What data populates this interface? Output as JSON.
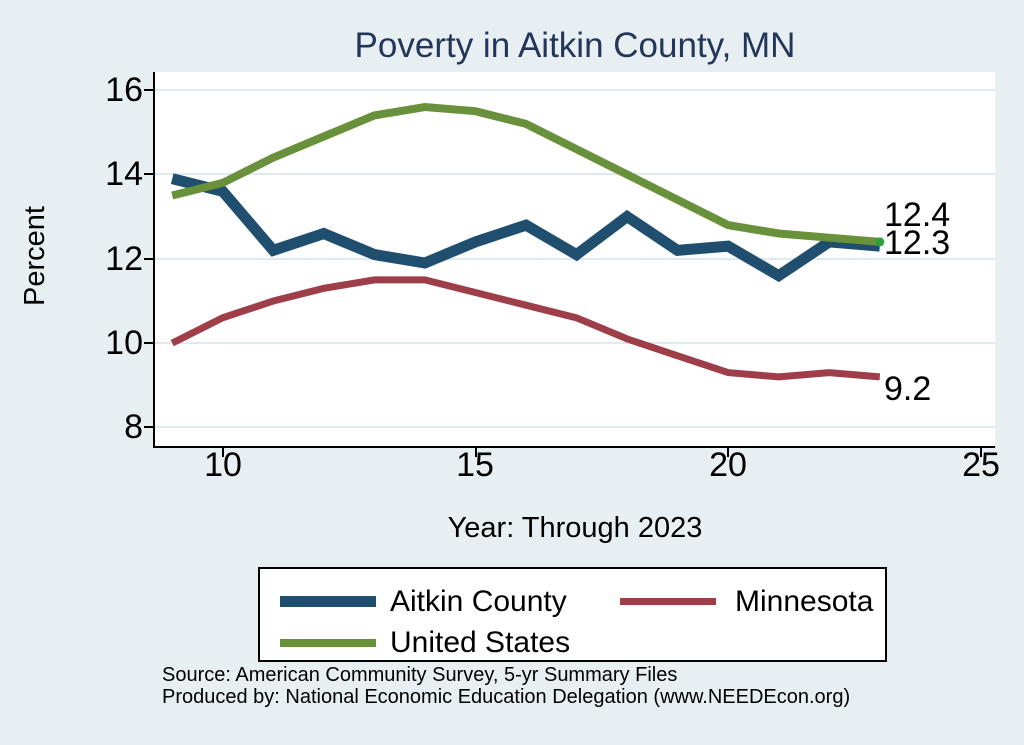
{
  "title": "Poverty in Aitkin County, MN",
  "x_axis": {
    "label": "Year: Through 2023",
    "ticks": [
      10,
      15,
      20,
      25
    ]
  },
  "y_axis": {
    "label": "Percent",
    "ticks": [
      16,
      14,
      12,
      10,
      8
    ]
  },
  "chart_data": {
    "type": "line",
    "title": "Poverty in Aitkin County, MN",
    "xlabel": "Year: Through 2023",
    "ylabel": "Percent",
    "grid": "horizontal",
    "legend_position": "bottom",
    "x": [
      9,
      10,
      11,
      12,
      13,
      14,
      15,
      16,
      17,
      18,
      19,
      20,
      21,
      22,
      23
    ],
    "xlim": [
      8.66,
      25.28
    ],
    "ylim": [
      7.56,
      16.43
    ],
    "marker_color": "#2f9e3c",
    "series": [
      {
        "name": "Aitkin County",
        "color": "#1f4e6f",
        "stroke_width": 11,
        "values": [
          13.9,
          13.6,
          12.2,
          12.6,
          12.1,
          11.9,
          12.4,
          12.8,
          12.1,
          13.0,
          12.2,
          12.3,
          11.6,
          12.4,
          12.3
        ],
        "end_label": "12.3",
        "end_marker": false
      },
      {
        "name": "Minnesota",
        "color": "#9e3e48",
        "stroke_width": 7,
        "values": [
          10.0,
          10.6,
          11.0,
          11.3,
          11.5,
          11.5,
          11.2,
          10.9,
          10.6,
          10.1,
          9.7,
          9.3,
          9.2,
          9.3,
          9.2
        ],
        "end_label": "9.2",
        "end_marker": false
      },
      {
        "name": "United States",
        "color": "#69903a",
        "stroke_width": 8,
        "values": [
          13.5,
          13.8,
          14.4,
          14.9,
          15.4,
          15.6,
          15.5,
          15.2,
          14.6,
          14.0,
          13.4,
          12.8,
          12.6,
          12.5,
          12.4
        ],
        "end_label": "12.4",
        "end_marker": true
      }
    ]
  },
  "legend": {
    "items": [
      {
        "label": "Aitkin County"
      },
      {
        "label": "Minnesota"
      },
      {
        "label": "United States"
      }
    ]
  },
  "notes": [
    "Source: American Community Survey, 5-yr Summary Files",
    "Produced by: National Economic Education Delegation (www.NEEDEcon.org)"
  ],
  "colors": {
    "background": "#e8eff2",
    "plot_background": "#ffffff",
    "grid": "#dfeaf0",
    "title": "#23365a",
    "axis": "#000000"
  }
}
